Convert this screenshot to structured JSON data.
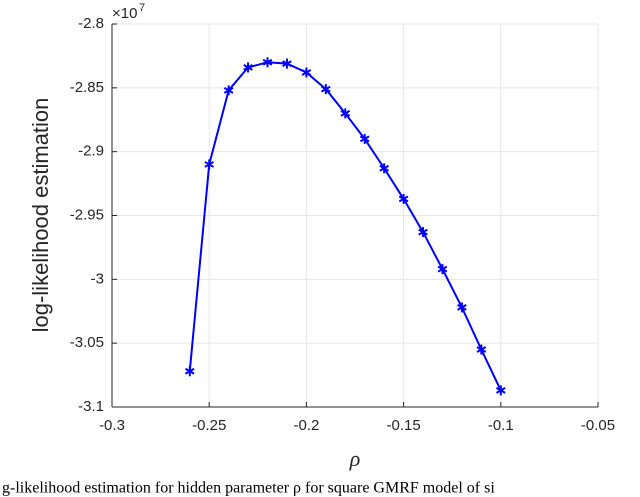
{
  "chart_data": {
    "type": "line",
    "x_label": "ρ",
    "y_label": "log-likelihood estimation",
    "y_scale_base": "×10",
    "y_scale_exponent": "7",
    "caption": "g-likelihood estimation for hidden parameter ρ for square GMRF model of si",
    "x": [
      -0.26,
      -0.25,
      -0.24,
      -0.23,
      -0.22,
      -0.21,
      -0.2,
      -0.19,
      -0.18,
      -0.17,
      -0.16,
      -0.15,
      -0.14,
      -0.13,
      -0.12,
      -0.11,
      -0.1
    ],
    "series": [
      {
        "color": "#0000ff",
        "values": [
          -3.072,
          -2.91,
          -2.852,
          -2.834,
          -2.83,
          -2.831,
          -2.838,
          -2.851,
          -2.87,
          -2.89,
          -2.913,
          -2.937,
          -2.963,
          -2.992,
          -3.022,
          -3.055,
          -3.087
        ]
      }
    ],
    "xlim": [
      -0.3,
      -0.05
    ],
    "xticks": [
      -0.3,
      -0.25,
      -0.2,
      -0.15,
      -0.1,
      -0.05
    ],
    "ylim": [
      -3.1,
      -2.8
    ],
    "yticks": [
      -3.1,
      -3.05,
      -3,
      -2.95,
      -2.9,
      -2.85,
      -2.8
    ],
    "grid": true
  }
}
